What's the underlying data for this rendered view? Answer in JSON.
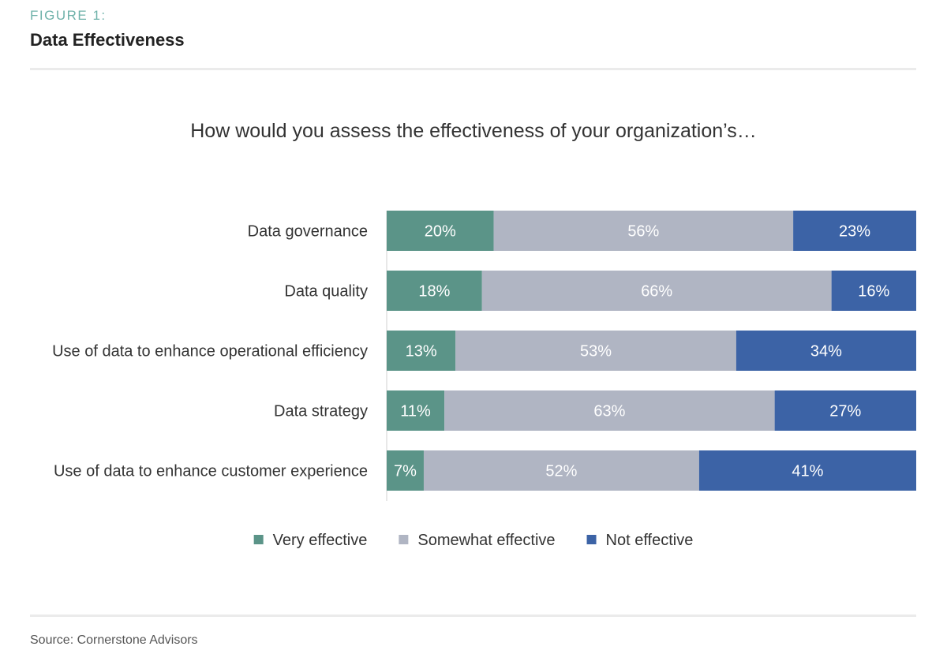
{
  "figure": {
    "label": "FIGURE 1:",
    "title": "Data Effectiveness"
  },
  "source": "Source: Cornerstone Advisors",
  "colors": {
    "very_effective": "#5b9488",
    "somewhat_effective": "#b0b5c3",
    "not_effective": "#3c63a6"
  },
  "chart_data": {
    "type": "bar",
    "orientation": "horizontal",
    "stacked": true,
    "title": "How would you assess the effectiveness of your organization’s…",
    "categories": [
      "Data governance",
      "Data quality",
      "Use of data to enhance operational efficiency",
      "Data strategy",
      "Use of data to enhance customer experience"
    ],
    "series": [
      {
        "name": "Very effective",
        "values": [
          20,
          18,
          13,
          11,
          7
        ],
        "labels": [
          "20%",
          "18%",
          "13%",
          "11%",
          "7%"
        ]
      },
      {
        "name": "Somewhat effective",
        "values": [
          56,
          66,
          53,
          63,
          52
        ],
        "labels": [
          "56%",
          "66%",
          "53%",
          "63%",
          "52%"
        ]
      },
      {
        "name": "Not effective",
        "values": [
          23,
          16,
          34,
          27,
          41
        ],
        "labels": [
          "23%",
          "16%",
          "34%",
          "27%",
          "41%"
        ]
      }
    ],
    "legend": "bottom",
    "grid": false
  }
}
